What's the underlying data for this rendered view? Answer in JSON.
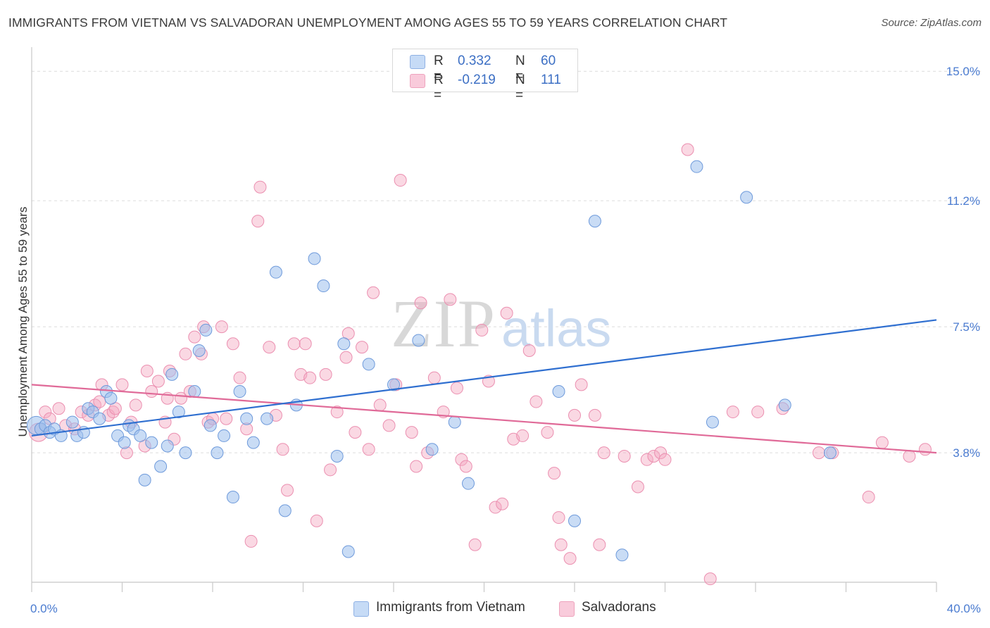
{
  "title": "IMMIGRANTS FROM VIETNAM VS SALVADORAN UNEMPLOYMENT AMONG AGES 55 TO 59 YEARS CORRELATION CHART",
  "source": "Source: ZipAtlas.com",
  "watermark": {
    "zip": "ZIP",
    "atlas": "atlas"
  },
  "legend": {
    "series1": {
      "r_label": "R =",
      "r_value": "0.332",
      "n_label": "N =",
      "n_value": "60"
    },
    "series2": {
      "r_label": "R =",
      "r_value": "-0.219",
      "n_label": "N =",
      "n_value": "111"
    }
  },
  "bottom_legend": {
    "series1": "Immigrants from Vietnam",
    "series2": "Salvadorans"
  },
  "chart_data": {
    "type": "scatter",
    "xlabel": "",
    "ylabel": "Unemployment Among Ages 55 to 59 years",
    "xlim": [
      0,
      40
    ],
    "ylim": [
      0,
      15.5
    ],
    "x_tick_labels": [
      {
        "value": 0,
        "label": "0.0%"
      },
      {
        "value": 40,
        "label": "40.0%"
      }
    ],
    "y_tick_labels": [
      {
        "value": 3.8,
        "label": "3.8%"
      },
      {
        "value": 7.5,
        "label": "7.5%"
      },
      {
        "value": 11.2,
        "label": "11.2%"
      },
      {
        "value": 15.0,
        "label": "15.0%"
      }
    ],
    "grid": true,
    "colors": {
      "series1": "#9dbfec",
      "series1_line": "#2f6fd0",
      "series2": "#f4a9c2",
      "series2_line": "#e06a98",
      "tick_text": "#4a7bd0"
    },
    "series": [
      {
        "name": "Immigrants from Vietnam",
        "trend": {
          "x": [
            0,
            40
          ],
          "y": [
            4.3,
            7.7
          ]
        },
        "points": [
          [
            0.2,
            4.6
          ],
          [
            0.4,
            4.5
          ],
          [
            0.6,
            4.6
          ],
          [
            0.8,
            4.4
          ],
          [
            1.0,
            4.5
          ],
          [
            1.3,
            4.3
          ],
          [
            1.8,
            4.7
          ],
          [
            2.0,
            4.3
          ],
          [
            2.3,
            4.4
          ],
          [
            2.5,
            5.1
          ],
          [
            2.7,
            5.0
          ],
          [
            3.0,
            4.8
          ],
          [
            3.3,
            5.6
          ],
          [
            3.5,
            5.4
          ],
          [
            3.8,
            4.3
          ],
          [
            4.1,
            4.1
          ],
          [
            4.3,
            4.6
          ],
          [
            4.5,
            4.5
          ],
          [
            4.8,
            4.3
          ],
          [
            5.0,
            3.0
          ],
          [
            5.3,
            4.1
          ],
          [
            5.7,
            3.4
          ],
          [
            6.0,
            4.0
          ],
          [
            6.2,
            6.1
          ],
          [
            6.5,
            5.0
          ],
          [
            6.8,
            3.8
          ],
          [
            7.2,
            5.6
          ],
          [
            7.4,
            6.8
          ],
          [
            7.7,
            7.4
          ],
          [
            7.9,
            4.6
          ],
          [
            8.2,
            3.8
          ],
          [
            8.5,
            4.3
          ],
          [
            8.9,
            2.5
          ],
          [
            9.2,
            5.6
          ],
          [
            9.5,
            4.8
          ],
          [
            9.8,
            4.1
          ],
          [
            10.4,
            4.8
          ],
          [
            10.8,
            9.1
          ],
          [
            11.2,
            2.1
          ],
          [
            11.7,
            5.2
          ],
          [
            12.5,
            9.5
          ],
          [
            12.9,
            8.7
          ],
          [
            13.5,
            3.7
          ],
          [
            13.8,
            7.0
          ],
          [
            14.0,
            0.9
          ],
          [
            14.9,
            6.4
          ],
          [
            16.0,
            5.8
          ],
          [
            17.1,
            7.1
          ],
          [
            17.7,
            3.9
          ],
          [
            18.7,
            4.7
          ],
          [
            19.3,
            2.9
          ],
          [
            23.3,
            5.6
          ],
          [
            24.0,
            1.8
          ],
          [
            24.9,
            10.6
          ],
          [
            26.1,
            0.8
          ],
          [
            29.4,
            12.2
          ],
          [
            30.1,
            4.7
          ],
          [
            31.6,
            11.3
          ],
          [
            33.3,
            5.2
          ],
          [
            35.3,
            3.8
          ]
        ]
      },
      {
        "name": "Salvadorans",
        "trend": {
          "x": [
            0,
            40
          ],
          "y": [
            5.8,
            3.8
          ]
        },
        "points": [
          [
            0.3,
            4.4
          ],
          [
            0.6,
            5.0
          ],
          [
            0.8,
            4.8
          ],
          [
            1.2,
            5.1
          ],
          [
            1.5,
            4.6
          ],
          [
            1.9,
            4.5
          ],
          [
            2.2,
            5.0
          ],
          [
            2.5,
            4.9
          ],
          [
            2.8,
            5.2
          ],
          [
            3.0,
            5.3
          ],
          [
            3.1,
            5.8
          ],
          [
            3.4,
            4.9
          ],
          [
            3.6,
            5.0
          ],
          [
            3.7,
            5.1
          ],
          [
            4.0,
            5.8
          ],
          [
            4.2,
            3.8
          ],
          [
            4.4,
            4.7
          ],
          [
            4.6,
            5.2
          ],
          [
            5.0,
            4.0
          ],
          [
            5.1,
            6.2
          ],
          [
            5.3,
            5.6
          ],
          [
            5.6,
            5.9
          ],
          [
            5.9,
            4.7
          ],
          [
            6.0,
            5.4
          ],
          [
            6.1,
            6.2
          ],
          [
            6.3,
            4.2
          ],
          [
            6.6,
            5.4
          ],
          [
            6.8,
            6.7
          ],
          [
            7.0,
            5.6
          ],
          [
            7.2,
            7.2
          ],
          [
            7.5,
            6.7
          ],
          [
            7.6,
            7.5
          ],
          [
            7.8,
            4.7
          ],
          [
            8.0,
            4.8
          ],
          [
            8.4,
            7.5
          ],
          [
            8.6,
            4.8
          ],
          [
            8.9,
            7.0
          ],
          [
            9.2,
            6.0
          ],
          [
            9.5,
            4.5
          ],
          [
            9.7,
            1.2
          ],
          [
            10.0,
            10.6
          ],
          [
            10.1,
            11.6
          ],
          [
            10.5,
            6.9
          ],
          [
            10.8,
            4.9
          ],
          [
            11.1,
            3.9
          ],
          [
            11.3,
            2.7
          ],
          [
            11.6,
            7.0
          ],
          [
            11.9,
            6.1
          ],
          [
            12.1,
            7.0
          ],
          [
            12.3,
            6.0
          ],
          [
            12.6,
            1.8
          ],
          [
            13.0,
            6.1
          ],
          [
            13.2,
            3.3
          ],
          [
            13.5,
            5.0
          ],
          [
            13.9,
            6.6
          ],
          [
            14.0,
            7.3
          ],
          [
            14.3,
            4.4
          ],
          [
            14.6,
            6.9
          ],
          [
            14.9,
            3.9
          ],
          [
            15.1,
            8.5
          ],
          [
            15.4,
            5.2
          ],
          [
            15.8,
            4.6
          ],
          [
            16.1,
            5.8
          ],
          [
            16.3,
            11.8
          ],
          [
            16.8,
            4.4
          ],
          [
            17.0,
            3.4
          ],
          [
            17.2,
            8.2
          ],
          [
            17.5,
            3.8
          ],
          [
            17.8,
            6.0
          ],
          [
            18.2,
            5.0
          ],
          [
            18.5,
            8.3
          ],
          [
            18.8,
            5.7
          ],
          [
            19.0,
            3.6
          ],
          [
            19.2,
            3.4
          ],
          [
            19.6,
            1.1
          ],
          [
            19.9,
            7.4
          ],
          [
            20.2,
            5.9
          ],
          [
            20.5,
            2.2
          ],
          [
            20.8,
            2.3
          ],
          [
            21.0,
            7.9
          ],
          [
            21.3,
            4.2
          ],
          [
            21.7,
            4.3
          ],
          [
            22.0,
            6.8
          ],
          [
            22.3,
            5.3
          ],
          [
            22.8,
            4.4
          ],
          [
            23.1,
            3.2
          ],
          [
            23.3,
            1.9
          ],
          [
            23.4,
            1.1
          ],
          [
            23.8,
            0.7
          ],
          [
            24.0,
            4.9
          ],
          [
            24.3,
            5.8
          ],
          [
            24.9,
            4.9
          ],
          [
            25.1,
            1.1
          ],
          [
            25.3,
            3.8
          ],
          [
            26.2,
            3.7
          ],
          [
            26.8,
            2.8
          ],
          [
            27.2,
            3.6
          ],
          [
            27.5,
            3.7
          ],
          [
            27.8,
            3.8
          ],
          [
            28.0,
            3.6
          ],
          [
            29.0,
            12.7
          ],
          [
            30.0,
            0.1
          ],
          [
            31.0,
            5.0
          ],
          [
            32.1,
            5.0
          ],
          [
            33.2,
            5.1
          ],
          [
            34.8,
            3.8
          ],
          [
            35.4,
            3.8
          ],
          [
            37.0,
            2.5
          ],
          [
            37.6,
            4.1
          ],
          [
            38.8,
            3.7
          ],
          [
            39.5,
            3.9
          ]
        ]
      }
    ]
  }
}
